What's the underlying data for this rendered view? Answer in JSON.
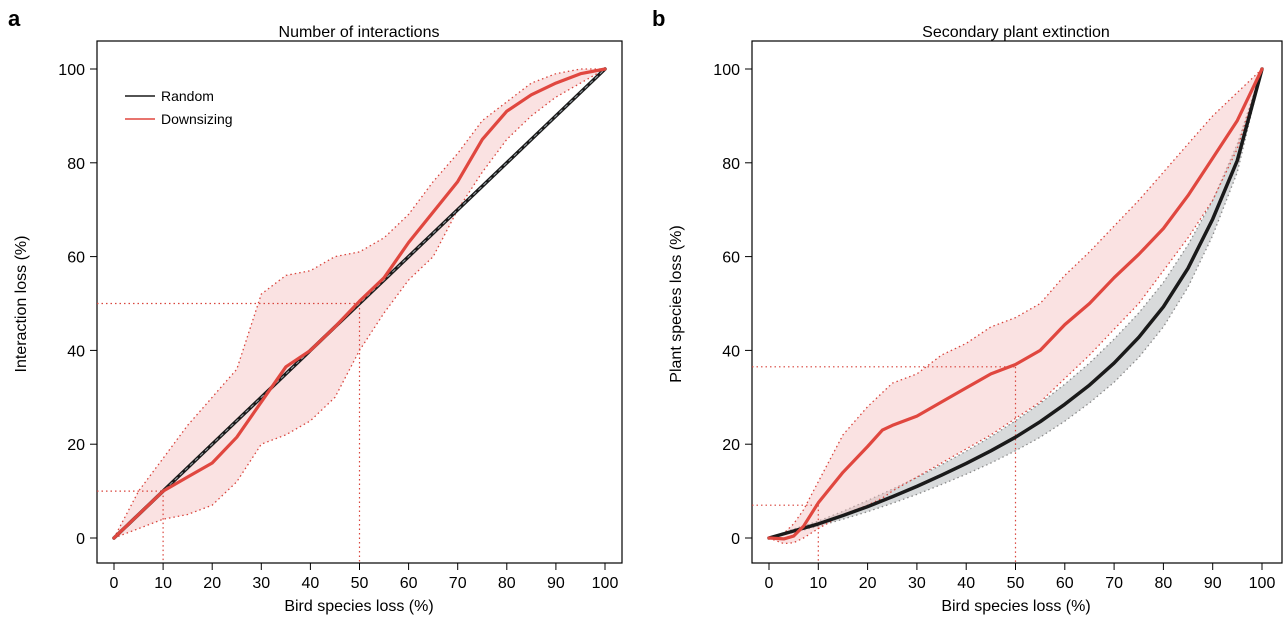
{
  "chart_data": [
    {
      "panel": "a",
      "type": "line",
      "title": "Number of interactions",
      "xlabel": "Bird species loss (%)",
      "ylabel": "Interaction loss (%)",
      "xlim": [
        0,
        100
      ],
      "ylim": [
        0,
        100
      ],
      "xticks": [
        0,
        10,
        20,
        30,
        40,
        50,
        60,
        70,
        80,
        90,
        100
      ],
      "yticks": [
        0,
        20,
        40,
        60,
        80,
        100
      ],
      "legend": {
        "placement": "top-left",
        "entries": [
          "Random",
          "Downsizing"
        ]
      },
      "series": [
        {
          "name": "Random",
          "color": "#1a1a1a",
          "x": [
            0,
            100
          ],
          "y": [
            0,
            100
          ],
          "band_lower": [
            0,
            100
          ],
          "band_upper": [
            0,
            100
          ]
        },
        {
          "name": "Downsizing",
          "color": "#e0473f",
          "x": [
            0,
            5,
            10,
            15,
            20,
            25,
            30,
            35,
            40,
            45,
            50,
            55,
            60,
            65,
            70,
            75,
            80,
            85,
            90,
            95,
            100
          ],
          "y": [
            0,
            5,
            10,
            13,
            16,
            21.5,
            29,
            36.5,
            40,
            45,
            50.5,
            55.5,
            63,
            69.5,
            76,
            85,
            91,
            94.5,
            97,
            99,
            100
          ],
          "band_lower": [
            0,
            2,
            4,
            5,
            7,
            12,
            20,
            22,
            25,
            30,
            40,
            48,
            55,
            60,
            70,
            78,
            85,
            90,
            94,
            97,
            100
          ],
          "band_upper": [
            0,
            10,
            17,
            24,
            30,
            36,
            52,
            56,
            57,
            60,
            61,
            64,
            69,
            76,
            82,
            89,
            93,
            97,
            99,
            100,
            100
          ]
        }
      ],
      "reference_lines": [
        {
          "x": 10,
          "y": 10
        },
        {
          "x": 50,
          "y": 50
        }
      ]
    },
    {
      "panel": "b",
      "type": "line",
      "title": "Secondary plant extinction",
      "xlabel": "Bird species loss (%)",
      "ylabel": "Plant species loss (%)",
      "xlim": [
        0,
        100
      ],
      "ylim": [
        0,
        100
      ],
      "xticks": [
        0,
        10,
        20,
        30,
        40,
        50,
        60,
        70,
        80,
        90,
        100
      ],
      "yticks": [
        0,
        20,
        40,
        60,
        80,
        100
      ],
      "series": [
        {
          "name": "Random",
          "color": "#1a1a1a",
          "x": [
            0,
            5,
            10,
            15,
            20,
            25,
            30,
            35,
            40,
            45,
            50,
            55,
            60,
            65,
            70,
            75,
            80,
            85,
            90,
            95,
            100
          ],
          "y": [
            0,
            1.5,
            3,
            4.8,
            6.7,
            8.8,
            11,
            13.4,
            15.9,
            18.6,
            21.5,
            24.8,
            28.5,
            32.6,
            37.3,
            42.8,
            49.3,
            57.5,
            68,
            80.5,
            100
          ],
          "band_lower": [
            0,
            1.2,
            2.5,
            4,
            5.6,
            7.4,
            9.3,
            11.4,
            13.6,
            16,
            18.6,
            21.5,
            24.9,
            28.8,
            33.2,
            38.5,
            45,
            53.5,
            64.5,
            78,
            100
          ],
          "band_upper": [
            0,
            1.9,
            3.6,
            5.7,
            8,
            10.4,
            12.9,
            15.6,
            18.5,
            21.6,
            25,
            28.7,
            32.8,
            37.3,
            42.4,
            48,
            54.5,
            62.5,
            72,
            84,
            100
          ]
        },
        {
          "name": "Downsizing",
          "color": "#e0473f",
          "x": [
            0,
            3,
            5,
            7,
            10,
            15,
            20,
            23,
            25,
            30,
            35,
            40,
            45,
            50,
            55,
            60,
            65,
            70,
            75,
            80,
            85,
            90,
            95,
            100
          ],
          "y": [
            0,
            -0.2,
            0.4,
            2.5,
            7.5,
            14,
            19.5,
            23,
            24,
            26,
            29,
            32,
            35,
            37,
            40,
            45.5,
            50,
            55.5,
            60.5,
            66,
            73,
            81,
            89,
            100
          ],
          "band_lower": [
            0,
            -1.2,
            -1,
            0,
            2,
            5,
            7,
            8.5,
            10,
            13,
            16,
            19,
            22,
            25.5,
            29,
            34,
            39,
            44.5,
            50,
            57,
            64,
            72,
            83,
            100
          ],
          "band_upper": [
            0,
            1,
            3,
            6,
            12,
            22,
            28,
            31,
            33,
            35,
            39,
            41.5,
            45,
            47,
            50,
            56,
            61,
            66.5,
            72,
            78,
            84,
            90,
            95,
            100
          ]
        }
      ],
      "reference_lines": [
        {
          "x": 10,
          "y": 7
        },
        {
          "x": 50,
          "y": 36.5
        }
      ]
    }
  ]
}
